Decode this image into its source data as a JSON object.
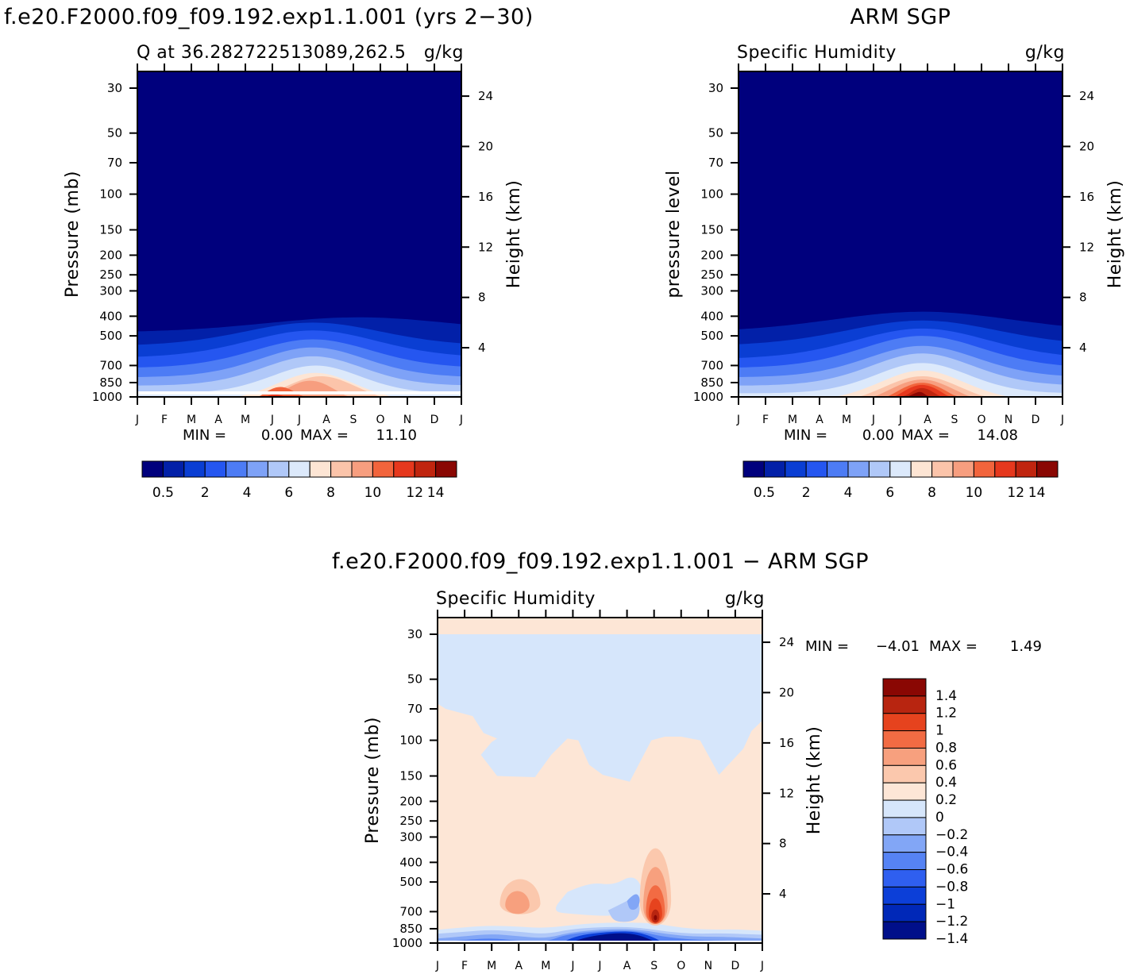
{
  "months": [
    "J",
    "F",
    "M",
    "A",
    "M",
    "J",
    "J",
    "A",
    "S",
    "O",
    "N",
    "D",
    "J"
  ],
  "pressure_ticks": [
    "30",
    "50",
    "70",
    "100",
    "150",
    "200",
    "250",
    "300",
    "400",
    "500",
    "700",
    "850",
    "1000"
  ],
  "height_ticks": [
    "24",
    "20",
    "16",
    "12",
    "8",
    "4"
  ],
  "colors": {
    "abs": [
      "#00007d",
      "#0220a8",
      "#0a3ed3",
      "#2556f0",
      "#4d7cf5",
      "#7ea2f7",
      "#b0c8f8",
      "#dce9fb",
      "#fde5d4",
      "#fbc4aa",
      "#f79e7f",
      "#f2643c",
      "#e6381d",
      "#c0250f",
      "#8a0703"
    ],
    "diff": [
      "#000f8a",
      "#0028b8",
      "#0c3fd8",
      "#2f5ff0",
      "#5683f4",
      "#82a6f6",
      "#b0c8f8",
      "#d6e6fb",
      "#fde6d6",
      "#fbc8ad",
      "#f7a07e",
      "#f26b43",
      "#e6431e",
      "#b82510",
      "#8a0703"
    ]
  },
  "panels": {
    "model": {
      "title": "f.e20.F2000.f09_f09.192.exp1.1.001 (yrs 2−30)",
      "left_label": "Q at 36.282722513089,262.5",
      "units": "g/kg",
      "ylabel": "Pressure (mb)",
      "ylabel2": "Height (km)",
      "min_label": "MIN =",
      "min_value": "0.00",
      "max_label": "MAX =",
      "max_value": "11.10",
      "colorbar_labels": [
        "0.5",
        "2",
        "4",
        "6",
        "8",
        "10",
        "12",
        "14"
      ]
    },
    "obs": {
      "title": "ARM SGP",
      "left_label": "Specific Humidity",
      "units": "g/kg",
      "ylabel": "pressure level",
      "ylabel2": "Height (km)",
      "min_label": "MIN =",
      "min_value": "0.00",
      "max_label": "MAX =",
      "max_value": "14.08",
      "colorbar_labels": [
        "0.5",
        "2",
        "4",
        "6",
        "8",
        "10",
        "12",
        "14"
      ]
    },
    "diff": {
      "title": "f.e20.F2000.f09_f09.192.exp1.1.001 − ARM SGP",
      "left_label": "Specific Humidity",
      "units": "g/kg",
      "ylabel": "Pressure (mb)",
      "ylabel2": "Height (km)",
      "min_label": "MIN =",
      "min_value": "−4.01",
      "max_label": "MAX =",
      "max_value": "1.49",
      "colorbar_labels": [
        "1.4",
        "1.2",
        "1",
        "0.8",
        "0.6",
        "0.4",
        "0.2",
        "0",
        "−0.2",
        "−0.4",
        "−0.6",
        "−0.8",
        "−1",
        "−1.2",
        "−1.4"
      ]
    }
  },
  "chart_data": [
    {
      "type": "heatmap",
      "title": "f.e20.F2000.f09_f09.192.exp1.1.001 (yrs 2−30)",
      "xlabel": "",
      "ylabel": "Pressure (mb)",
      "y2label": "Height (km)",
      "x": [
        "J",
        "F",
        "M",
        "A",
        "M",
        "J",
        "J",
        "A",
        "S",
        "O",
        "N",
        "D",
        "J"
      ],
      "y_pressure_mb": [
        1000,
        850,
        700,
        500,
        400,
        300,
        250,
        200,
        150,
        100,
        70,
        50,
        30
      ],
      "y_log_scale": true,
      "contour_levels": [
        0.5,
        1,
        2,
        3,
        4,
        5,
        6,
        7,
        8,
        9,
        10,
        11,
        12,
        13,
        14
      ],
      "min": 0.0,
      "max": 11.1,
      "units": "g/kg"
    },
    {
      "type": "heatmap",
      "title": "ARM SGP",
      "xlabel": "",
      "ylabel": "pressure level",
      "y2label": "Height (km)",
      "x": [
        "J",
        "F",
        "M",
        "A",
        "M",
        "J",
        "J",
        "A",
        "S",
        "O",
        "N",
        "D",
        "J"
      ],
      "y_pressure_mb": [
        1000,
        850,
        700,
        500,
        400,
        300,
        250,
        200,
        150,
        100,
        70,
        50,
        30
      ],
      "y_log_scale": true,
      "contour_levels": [
        0.5,
        1,
        2,
        3,
        4,
        5,
        6,
        7,
        8,
        9,
        10,
        11,
        12,
        13,
        14
      ],
      "min": 0.0,
      "max": 14.08,
      "units": "g/kg"
    },
    {
      "type": "heatmap",
      "title": "f.e20.F2000.f09_f09.192.exp1.1.001 − ARM SGP",
      "xlabel": "",
      "ylabel": "Pressure (mb)",
      "y2label": "Height (km)",
      "x": [
        "J",
        "F",
        "M",
        "A",
        "M",
        "J",
        "J",
        "A",
        "S",
        "O",
        "N",
        "D",
        "J"
      ],
      "y_pressure_mb": [
        1000,
        850,
        700,
        500,
        400,
        300,
        250,
        200,
        150,
        100,
        70,
        50,
        30
      ],
      "y_log_scale": true,
      "contour_levels": [
        -1.4,
        -1.2,
        -1,
        -0.8,
        -0.6,
        -0.4,
        -0.2,
        0,
        0.2,
        0.4,
        0.6,
        0.8,
        1,
        1.2,
        1.4
      ],
      "min": -4.01,
      "max": 1.49,
      "units": "g/kg"
    }
  ]
}
